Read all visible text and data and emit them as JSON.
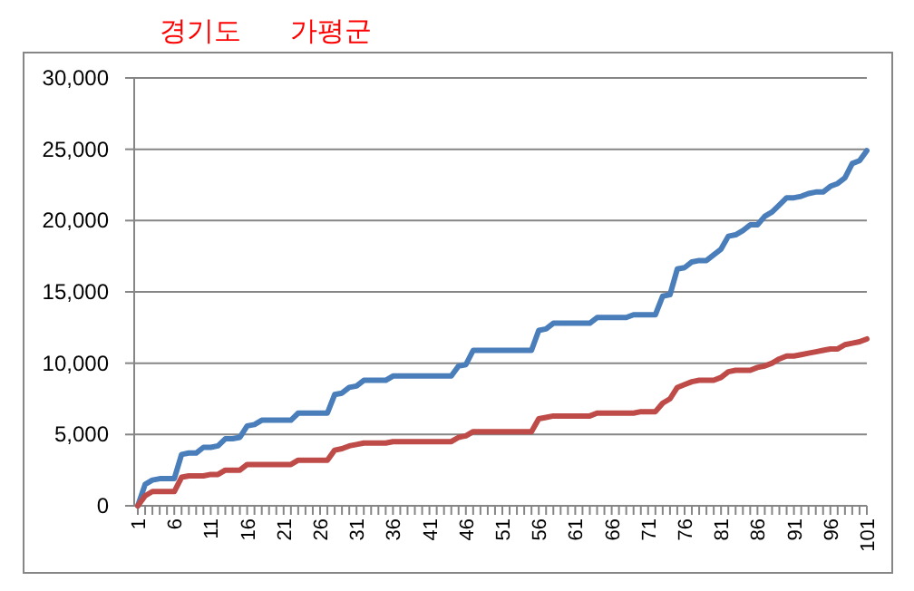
{
  "chart_data": {
    "type": "line",
    "title": "경기도",
    "subtitle": "가평군",
    "categories": [
      "1",
      null,
      null,
      null,
      null,
      "6",
      null,
      null,
      null,
      null,
      "11",
      null,
      null,
      null,
      null,
      "16",
      null,
      null,
      null,
      null,
      "21",
      null,
      null,
      null,
      null,
      "26",
      null,
      null,
      null,
      null,
      "31",
      null,
      null,
      null,
      null,
      "36",
      null,
      null,
      null,
      null,
      "41",
      null,
      null,
      null,
      null,
      "46",
      null,
      null,
      null,
      null,
      "51",
      null,
      null,
      null,
      null,
      "56",
      null,
      null,
      null,
      null,
      "61",
      null,
      null,
      null,
      null,
      "66",
      null,
      null,
      null,
      null,
      "71",
      null,
      null,
      null,
      null,
      "76",
      null,
      null,
      null,
      null,
      "81",
      null,
      null,
      null,
      null,
      "86",
      null,
      null,
      null,
      null,
      "91",
      null,
      null,
      null,
      null,
      "96",
      null,
      null,
      null,
      null,
      "101"
    ],
    "series": [
      {
        "color": "#4a7ebb",
        "values": [
          0,
          1500,
          1800,
          1900,
          1900,
          1900,
          3600,
          3700,
          3700,
          4100,
          4100,
          4200,
          4700,
          4700,
          4800,
          5600,
          5700,
          6000,
          6000,
          6000,
          6000,
          6000,
          6500,
          6500,
          6500,
          6500,
          6500,
          7800,
          7900,
          8300,
          8400,
          8800,
          8800,
          8800,
          8800,
          9100,
          9100,
          9100,
          9100,
          9100,
          9100,
          9100,
          9100,
          9100,
          9800,
          9900,
          10900,
          10900,
          10900,
          10900,
          10900,
          10900,
          10900,
          10900,
          10900,
          12300,
          12400,
          12800,
          12800,
          12800,
          12800,
          12800,
          12800,
          13200,
          13200,
          13200,
          13200,
          13200,
          13400,
          13400,
          13400,
          13400,
          14700,
          14800,
          16600,
          16700,
          17100,
          17200,
          17200,
          17600,
          18000,
          18900,
          19000,
          19300,
          19700,
          19700,
          20300,
          20600,
          21100,
          21600,
          21600,
          21700,
          21900,
          22000,
          22000,
          22400,
          22600,
          23000,
          24000,
          24200,
          24900
        ]
      },
      {
        "color": "#be4b48",
        "values": [
          0,
          700,
          1000,
          1000,
          1000,
          1000,
          2000,
          2100,
          2100,
          2100,
          2200,
          2200,
          2500,
          2500,
          2500,
          2900,
          2900,
          2900,
          2900,
          2900,
          2900,
          2900,
          3200,
          3200,
          3200,
          3200,
          3200,
          3900,
          4000,
          4200,
          4300,
          4400,
          4400,
          4400,
          4400,
          4500,
          4500,
          4500,
          4500,
          4500,
          4500,
          4500,
          4500,
          4500,
          4800,
          4900,
          5200,
          5200,
          5200,
          5200,
          5200,
          5200,
          5200,
          5200,
          5200,
          6100,
          6200,
          6300,
          6300,
          6300,
          6300,
          6300,
          6300,
          6500,
          6500,
          6500,
          6500,
          6500,
          6500,
          6600,
          6600,
          6600,
          7200,
          7500,
          8300,
          8500,
          8700,
          8800,
          8800,
          8800,
          9000,
          9400,
          9500,
          9500,
          9500,
          9700,
          9800,
          10000,
          10300,
          10500,
          10500,
          10600,
          10700,
          10800,
          10900,
          11000,
          11000,
          11300,
          11400,
          11500,
          11700
        ]
      }
    ],
    "ylim": [
      0,
      30000
    ],
    "yticks": [
      0,
      {
        "value": 5000,
        "label": "5,000"
      },
      {
        "value": 10000,
        "label": "10,000"
      },
      {
        "value": 15000,
        "label": "15,000"
      },
      {
        "value": 20000,
        "label": "20,000"
      },
      {
        "value": 25000,
        "label": "25,000"
      },
      {
        "value": 30000,
        "label": "30,000"
      }
    ],
    "grid": "y",
    "marker": "none",
    "line_style": "solid"
  }
}
